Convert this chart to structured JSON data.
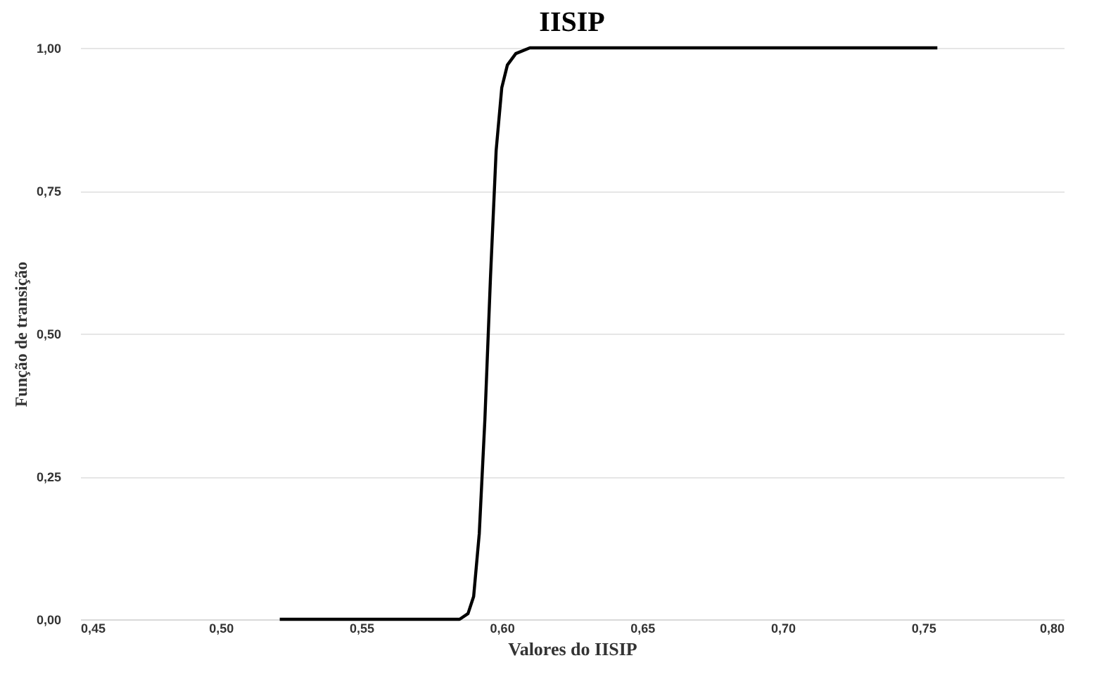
{
  "chart_data": {
    "type": "line",
    "title": "IISIP",
    "xlabel": "Valores do IISIP",
    "ylabel": "Função de transição",
    "x": [
      0.521,
      0.585,
      0.588,
      0.59,
      0.592,
      0.594,
      0.596,
      0.598,
      0.6,
      0.602,
      0.605,
      0.61,
      0.755
    ],
    "series": [
      {
        "color": "#000000",
        "values": [
          0,
          0,
          0.01,
          0.04,
          0.15,
          0.35,
          0.6,
          0.82,
          0.93,
          0.97,
          0.99,
          1,
          1
        ]
      }
    ],
    "xlim": [
      0.45,
      0.8
    ],
    "xticks": [
      {
        "value": 0.45,
        "label": "0,45"
      },
      {
        "value": 0.5,
        "label": "0,50"
      },
      {
        "value": 0.55,
        "label": "0,55"
      },
      {
        "value": 0.6,
        "label": "0,60"
      },
      {
        "value": 0.65,
        "label": "0,65"
      },
      {
        "value": 0.7,
        "label": "0,70"
      },
      {
        "value": 0.75,
        "label": "0,75"
      },
      {
        "value": 0.8,
        "label": "0,80"
      }
    ],
    "ylim": [
      0,
      1
    ],
    "yticks": [
      {
        "value": 0,
        "label": "0,00"
      },
      {
        "value": 0.25,
        "label": "0,25"
      },
      {
        "value": 0.5,
        "label": "0,50"
      },
      {
        "value": 0.75,
        "label": "0,75"
      },
      {
        "value": 1,
        "label": "1,00"
      }
    ],
    "grid": "y",
    "marker": "none",
    "line_style": "solid"
  }
}
